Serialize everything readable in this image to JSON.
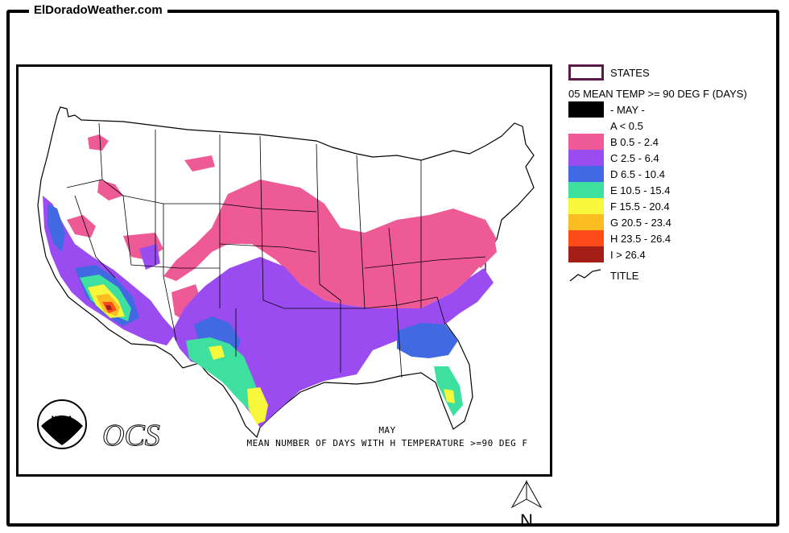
{
  "site": {
    "title": "ElDoradoWeather.com"
  },
  "map": {
    "caption_line1": "MAY",
    "caption_line2": "MEAN NUMBER OF DAYS WITH H TEMPERATURE >=90 DEG F",
    "logo_text": "OCS",
    "noaa_text": "NOAA",
    "north_label": "N"
  },
  "legend": {
    "states_label": "STATES",
    "heading": "05 MEAN TEMP >= 90 DEG F (DAYS)",
    "month_label": "- MAY -",
    "title_label": "TITLE",
    "classes": [
      {
        "label": "A < 0.5",
        "color": "#ffffff"
      },
      {
        "label": "B 0.5 - 2.4",
        "color": "#ee5a96"
      },
      {
        "label": "C 2.5 - 6.4",
        "color": "#9b4cf0"
      },
      {
        "label": "D 6.5 - 10.4",
        "color": "#4169e1"
      },
      {
        "label": "E 10.5 - 15.4",
        "color": "#3ee0a0"
      },
      {
        "label": "F 15.5 - 20.4",
        "color": "#f7f73c"
      },
      {
        "label": "G 20.5 - 23.4",
        "color": "#fbbd22"
      },
      {
        "label": "H 23.5 - 26.4",
        "color": "#ff4a1a"
      },
      {
        "label": "I > 26.4",
        "color": "#a21e16"
      }
    ]
  }
}
